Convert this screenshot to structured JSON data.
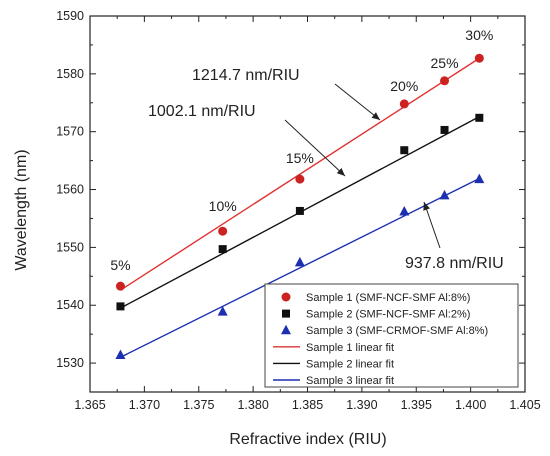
{
  "chart_data": {
    "type": "scatter",
    "xlabel": "Refractive index (RIU)",
    "ylabel": "Wavelength (nm)",
    "xlim": [
      1.365,
      1.405
    ],
    "ylim": [
      1525,
      1590
    ],
    "xticks": [
      "1.365",
      "1.370",
      "1.375",
      "1.380",
      "1.385",
      "1.390",
      "1.395",
      "1.400",
      "1.405"
    ],
    "yticks": [
      "1530",
      "1540",
      "1550",
      "1560",
      "1570",
      "1580",
      "1590"
    ],
    "x": [
      1.3678,
      1.3772,
      1.3843,
      1.3939,
      1.3976,
      1.4008
    ],
    "grid": false,
    "legend_position": "bottom-right",
    "series": [
      {
        "name": "Sample 1 (SMF-NCF-SMF Al:8%)",
        "marker": "circle",
        "color": "#cc2222",
        "values": [
          1543.3,
          1552.8,
          1561.8,
          1574.8,
          1578.8,
          1582.7
        ]
      },
      {
        "name": "Sample 2 (SMF-NCF-SMF Al:2%)",
        "marker": "square",
        "color": "#111111",
        "values": [
          1539.8,
          1549.7,
          1556.3,
          1566.8,
          1570.3,
          1572.4
        ]
      },
      {
        "name": "Sample 3 (SMF-CRMOF-SMF Al:8%)",
        "marker": "triangle",
        "color": "#1c2fb0",
        "values": [
          1531.4,
          1538.9,
          1547.4,
          1556.2,
          1559.0,
          1561.8
        ]
      }
    ],
    "fits": [
      {
        "name": "Sample 1 linear fit",
        "color": "#e03333",
        "x": [
          1.3678,
          1.4008
        ],
        "y": [
          1542.6,
          1582.7
        ]
      },
      {
        "name": "Sample 2 linear fit",
        "color": "#111111",
        "x": [
          1.3678,
          1.4008
        ],
        "y": [
          1539.5,
          1572.6
        ]
      },
      {
        "name": "Sample 3 linear fit",
        "color": "#1c2fb0",
        "x": [
          1.3678,
          1.4008
        ],
        "y": [
          1531.0,
          1561.9
        ]
      }
    ],
    "point_labels": [
      "5%",
      "10%",
      "15%",
      "20%",
      "25%",
      "30%"
    ],
    "annotations": [
      "1214.7 nm/RIU",
      "1002.1 nm/RIU",
      "937.8 nm/RIU"
    ]
  }
}
